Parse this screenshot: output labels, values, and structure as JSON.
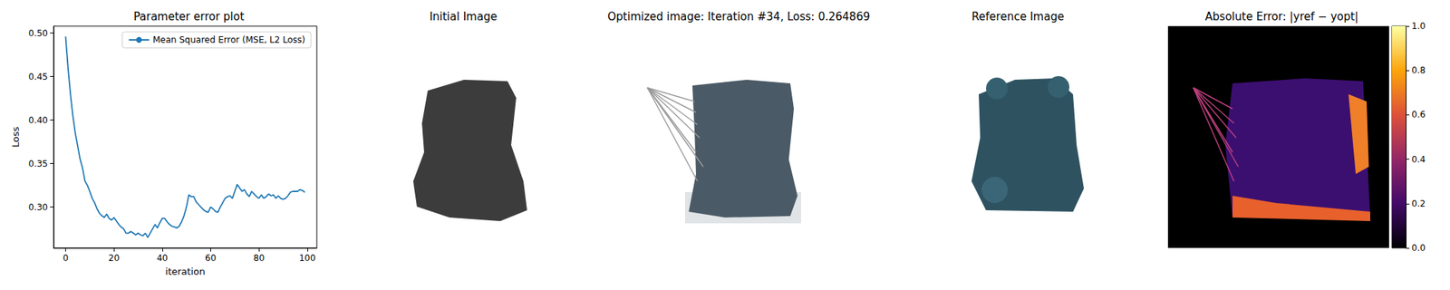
{
  "chart_data": [
    {
      "type": "line",
      "title": "Parameter error plot",
      "x_label": "iteration",
      "y_label": "Loss",
      "x": [
        0,
        1,
        2,
        3,
        4,
        5,
        6,
        7,
        8,
        9,
        10,
        11,
        12,
        13,
        14,
        15,
        16,
        17,
        18,
        19,
        20,
        21,
        22,
        23,
        24,
        25,
        26,
        27,
        28,
        29,
        30,
        31,
        32,
        33,
        34,
        35,
        36,
        37,
        38,
        39,
        40,
        41,
        42,
        43,
        44,
        45,
        46,
        47,
        48,
        49,
        50,
        51,
        52,
        53,
        54,
        55,
        56,
        57,
        58,
        59,
        60,
        61,
        62,
        63,
        64,
        65,
        66,
        67,
        68,
        69,
        70,
        71,
        72,
        73,
        74,
        75,
        76,
        77,
        78,
        79,
        80,
        81,
        82,
        83,
        84,
        85,
        86,
        87,
        88,
        89,
        90,
        91,
        92,
        93,
        94,
        95,
        96,
        97,
        98,
        99
      ],
      "series": [
        {
          "name": "Mean Squared Error (MSE, L2 Loss)",
          "color": "#1f77b4",
          "values": [
            0.496,
            0.46,
            0.43,
            0.405,
            0.385,
            0.37,
            0.355,
            0.345,
            0.33,
            0.325,
            0.318,
            0.31,
            0.305,
            0.298,
            0.293,
            0.29,
            0.288,
            0.292,
            0.287,
            0.285,
            0.288,
            0.284,
            0.28,
            0.277,
            0.275,
            0.27,
            0.27,
            0.272,
            0.27,
            0.268,
            0.27,
            0.268,
            0.267,
            0.27,
            0.265,
            0.27,
            0.275,
            0.28,
            0.276,
            0.282,
            0.287,
            0.287,
            0.283,
            0.28,
            0.278,
            0.277,
            0.276,
            0.278,
            0.283,
            0.29,
            0.3,
            0.314,
            0.312,
            0.312,
            0.306,
            0.303,
            0.3,
            0.297,
            0.295,
            0.294,
            0.3,
            0.298,
            0.295,
            0.294,
            0.3,
            0.305,
            0.31,
            0.312,
            0.313,
            0.31,
            0.318,
            0.326,
            0.322,
            0.318,
            0.32,
            0.315,
            0.312,
            0.318,
            0.315,
            0.312,
            0.31,
            0.314,
            0.31,
            0.312,
            0.315,
            0.313,
            0.314,
            0.31,
            0.313,
            0.31,
            0.309,
            0.31,
            0.313,
            0.317,
            0.318,
            0.318,
            0.318,
            0.32,
            0.319,
            0.317
          ]
        }
      ],
      "xlim": [
        -4.95,
        103.95
      ],
      "xticks": [
        0,
        20,
        40,
        60,
        80,
        100
      ],
      "ylim": [
        0.253,
        0.508
      ],
      "yticks": [
        {
          "value": 0.3,
          "label": "0.30"
        },
        {
          "value": 0.35,
          "label": "0.35"
        },
        {
          "value": 0.4,
          "label": "0.40"
        },
        {
          "value": 0.45,
          "label": "0.45"
        },
        {
          "value": 0.5,
          "label": "0.50"
        }
      ],
      "legend": "upper right",
      "grid": false
    },
    {
      "type": "image",
      "title": "Initial Image"
    },
    {
      "type": "image",
      "title": "Optimized image: Iteration #34, Loss: 0.264869"
    },
    {
      "type": "image",
      "title": "Reference Image"
    },
    {
      "type": "heatmap",
      "title": "Absolute Error: |yref − yopt|",
      "ylim": [
        0,
        1
      ],
      "yticks": [
        {
          "value": 0,
          "label": "0.0"
        },
        {
          "value": 0.2,
          "label": "0.2"
        },
        {
          "value": 0.4,
          "label": "0.4"
        },
        {
          "value": 0.6,
          "label": "0.6"
        },
        {
          "value": 0.8,
          "label": "0.8"
        },
        {
          "value": 1,
          "label": "1.0"
        }
      ]
    }
  ]
}
